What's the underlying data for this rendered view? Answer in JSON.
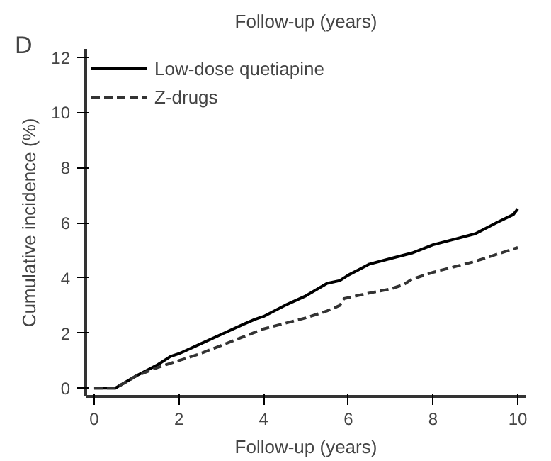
{
  "chart_data": {
    "type": "line",
    "title": "Follow-up (years)",
    "annotations": [
      "D"
    ],
    "xlabel": "Follow-up (years)",
    "ylabel": "Cumulative incidence (%)",
    "xlim": [
      -0.2,
      10.2
    ],
    "ylim": [
      -0.3,
      12.3
    ],
    "xticks": [
      0,
      2,
      4,
      6,
      8,
      10
    ],
    "yticks": [
      0,
      2,
      4,
      6,
      8,
      10,
      12
    ],
    "grid": false,
    "legend": "top left",
    "marker": "none",
    "series": [
      {
        "name": "Low-dose quetiapine",
        "color": "#000000",
        "line_style": "solid",
        "x": [
          0,
          0.5,
          1,
          1.5,
          1.8,
          2,
          2.5,
          3,
          3.5,
          3.8,
          4,
          4.5,
          5,
          5.5,
          5.8,
          6,
          6.5,
          7,
          7.5,
          8,
          8.5,
          9,
          9.5,
          9.9,
          10
        ],
        "values": [
          0,
          0,
          0.45,
          0.85,
          1.15,
          1.25,
          1.6,
          1.95,
          2.3,
          2.5,
          2.6,
          3.0,
          3.35,
          3.8,
          3.9,
          4.1,
          4.5,
          4.7,
          4.9,
          5.2,
          5.4,
          5.6,
          6.0,
          6.3,
          6.5
        ]
      },
      {
        "name": "Z-drugs",
        "color": "#333333",
        "line_style": "dashed",
        "x": [
          0,
          0.5,
          1,
          1.5,
          2,
          2.5,
          3,
          3.5,
          4,
          4.5,
          5,
          5.5,
          5.8,
          5.9,
          6.5,
          7,
          7.3,
          7.5,
          8,
          8.5,
          9,
          9.5,
          10
        ],
        "values": [
          0,
          0,
          0.45,
          0.75,
          1.0,
          1.25,
          1.55,
          1.85,
          2.15,
          2.35,
          2.55,
          2.8,
          3.0,
          3.25,
          3.45,
          3.6,
          3.75,
          3.95,
          4.2,
          4.4,
          4.6,
          4.85,
          5.1
        ]
      }
    ]
  }
}
